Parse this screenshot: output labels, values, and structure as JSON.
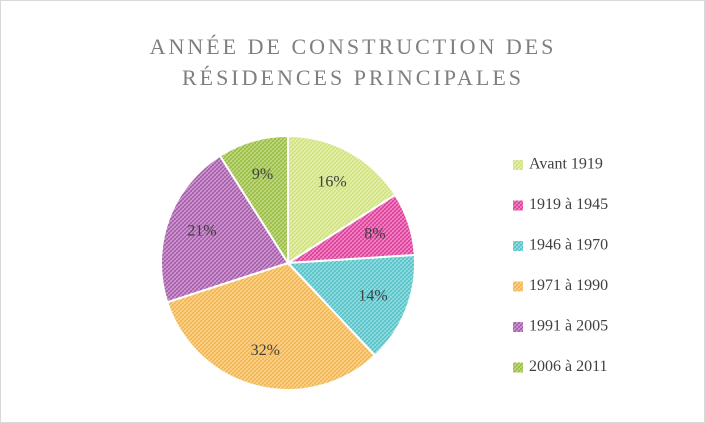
{
  "chart_data": {
    "type": "pie",
    "title": "ANNÉE DE CONSTRUCTION DES RÉSIDENCES PRINCIPALES",
    "categories": [
      "Avant 1919",
      "1919 à 1945",
      "1946 à 1970",
      "1971 à 1990",
      "1991 à 2005",
      "2006 à 2011"
    ],
    "values": [
      16,
      8,
      14,
      32,
      21,
      9
    ],
    "value_labels": [
      "16%",
      "8%",
      "14%",
      "32%",
      "21%",
      "9%"
    ],
    "colors": [
      "#cfe27a",
      "#e0399a",
      "#4fc3c8",
      "#f4b44a",
      "#a857ab",
      "#96bd3a"
    ],
    "legend": "right"
  }
}
